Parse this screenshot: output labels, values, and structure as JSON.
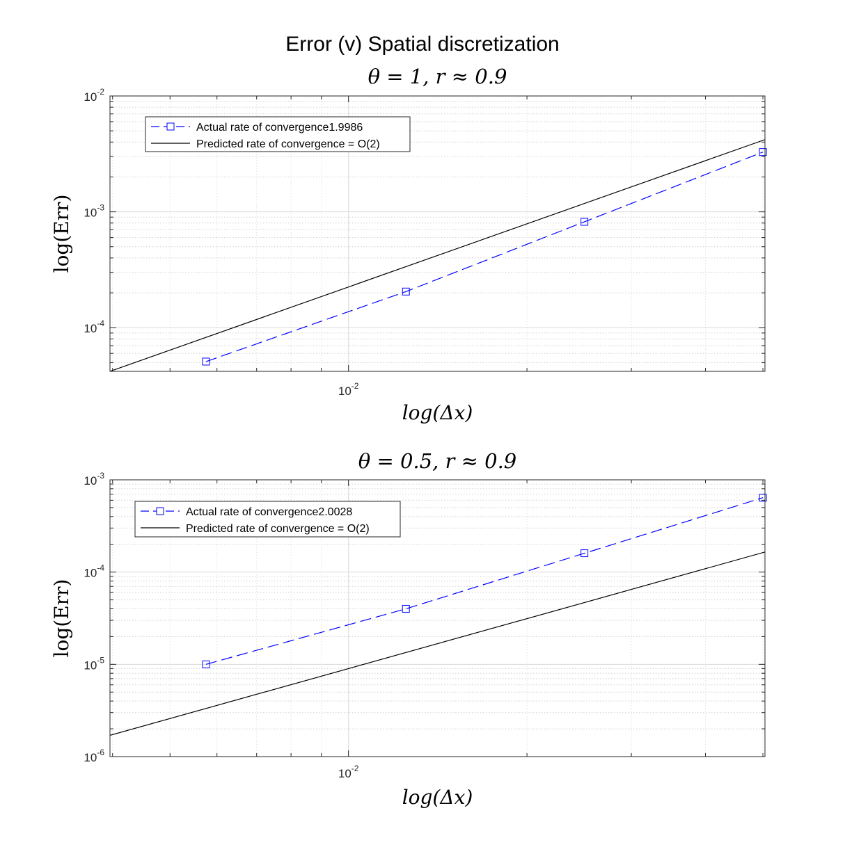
{
  "figure": {
    "title": "Error (v) Spatial discretization"
  },
  "chart_data": [
    {
      "type": "line",
      "title": "θ = 1, r ≈ 0.9",
      "xlabel": "log(Δx)",
      "ylabel": "log(Err)",
      "xscale": "log",
      "yscale": "log",
      "xlim": [
        0.00396,
        0.0504
      ],
      "ylim": [
        4.2e-05,
        0.01
      ],
      "x_ticks": [
        {
          "base": "10",
          "exp": "-2",
          "value": 0.01
        }
      ],
      "y_ticks": [
        {
          "base": "10",
          "exp": "-4",
          "value": 0.0001
        },
        {
          "base": "10",
          "exp": "-3",
          "value": 0.001
        },
        {
          "base": "10",
          "exp": "-2",
          "value": 0.01
        }
      ],
      "grid": true,
      "minor_grid": true,
      "legend_position": "top-left",
      "series": [
        {
          "name": "Actual rate of convergence1.9986",
          "style": "dashed",
          "marker": "square",
          "color": "#0000ff",
          "x": [
            0.00575,
            0.0125,
            0.025,
            0.05
          ],
          "y": [
            5.1e-05,
            0.000205,
            0.00082,
            0.00328
          ]
        },
        {
          "name": "Predicted rate of convergence = O(2)",
          "style": "solid",
          "marker": "none",
          "color": "#000000",
          "x": [
            0.00396,
            0.0504
          ],
          "y": [
            4.2e-05,
            0.0042
          ]
        }
      ]
    },
    {
      "type": "line",
      "title": "θ = 0.5, r ≈ 0.9",
      "xlabel": "log(Δx)",
      "ylabel": "log(Err)",
      "xscale": "log",
      "yscale": "log",
      "xlim": [
        0.00396,
        0.0504
      ],
      "ylim": [
        1e-06,
        0.001
      ],
      "x_ticks": [
        {
          "base": "10",
          "exp": "-2",
          "value": 0.01
        }
      ],
      "y_ticks": [
        {
          "base": "10",
          "exp": "-6",
          "value": 1e-06
        },
        {
          "base": "10",
          "exp": "-5",
          "value": 1e-05
        },
        {
          "base": "10",
          "exp": "-4",
          "value": 0.0001
        },
        {
          "base": "10",
          "exp": "-3",
          "value": 0.001
        }
      ],
      "grid": true,
      "minor_grid": true,
      "legend_position": "top-left",
      "series": [
        {
          "name": "Actual rate of convergence2.0028",
          "style": "dashed",
          "marker": "square",
          "color": "#0000ff",
          "x": [
            0.00575,
            0.0125,
            0.025,
            0.05
          ],
          "y": [
            1e-05,
            4e-05,
            0.00016,
            0.00064
          ]
        },
        {
          "name": "Predicted rate of convergence = O(2)",
          "style": "solid",
          "marker": "none",
          "color": "#000000",
          "x": [
            0.00396,
            0.0504
          ],
          "y": [
            1.7e-06,
            0.000165
          ]
        }
      ]
    }
  ]
}
